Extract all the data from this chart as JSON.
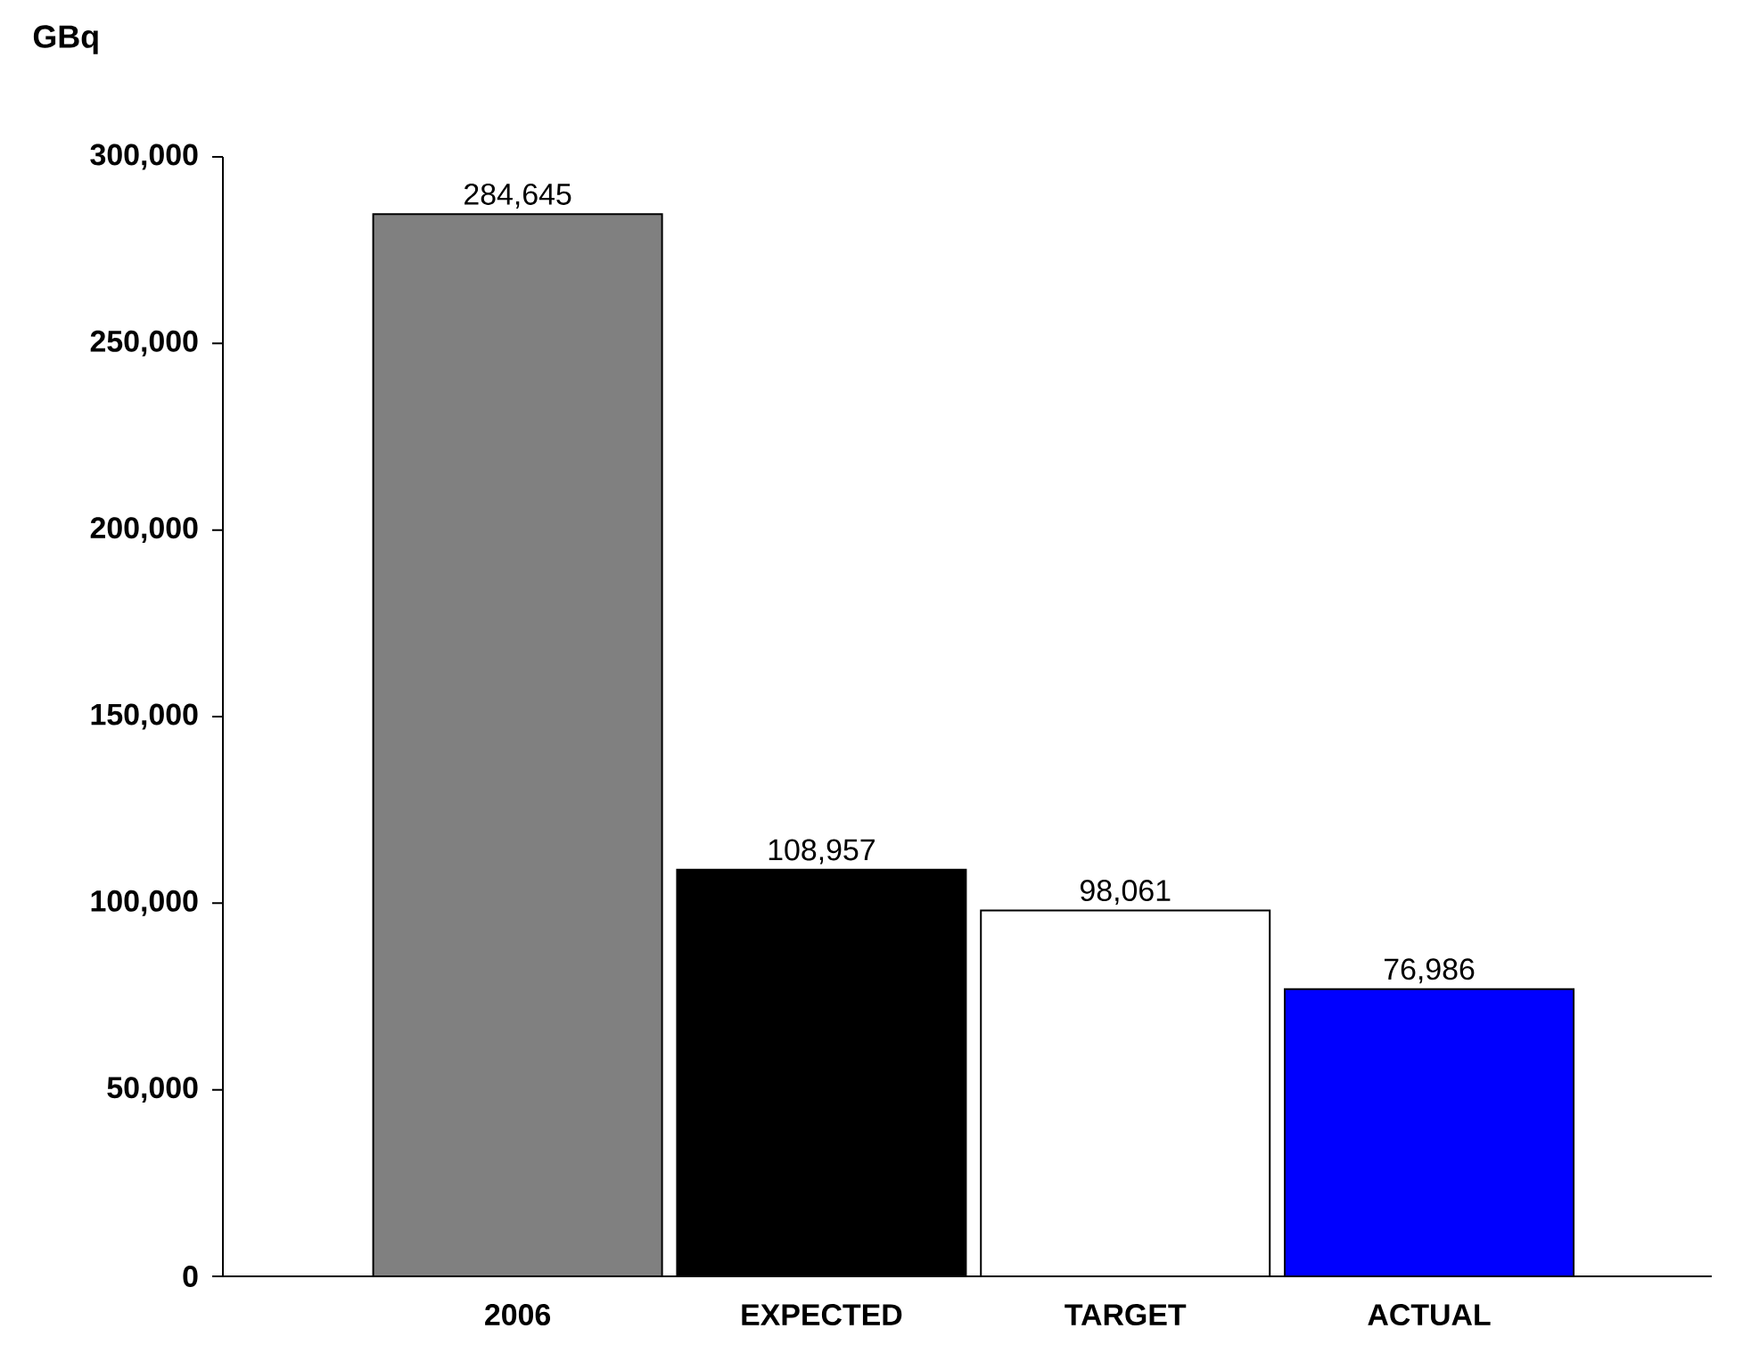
{
  "chart_data": {
    "type": "bar",
    "ylabel": "GBq",
    "categories": [
      "2006",
      "EXPECTED",
      "TARGET",
      "ACTUAL"
    ],
    "values": [
      284645,
      108957,
      98061,
      76986
    ],
    "colors": [
      "#808080",
      "#000000",
      "#ffffff",
      "#0000ff"
    ],
    "value_labels": [
      "284,645",
      "108,957",
      "98,061",
      "76,986"
    ],
    "ylim": [
      0,
      300000
    ],
    "yticks": [
      {
        "value": 0,
        "label": "0"
      },
      {
        "value": 50000,
        "label": "50,000"
      },
      {
        "value": 100000,
        "label": "100,000"
      },
      {
        "value": 150000,
        "label": "150,000"
      },
      {
        "value": 200000,
        "label": "200,000"
      },
      {
        "value": 250000,
        "label": "250,000"
      },
      {
        "value": 300000,
        "label": "300,000"
      }
    ]
  }
}
